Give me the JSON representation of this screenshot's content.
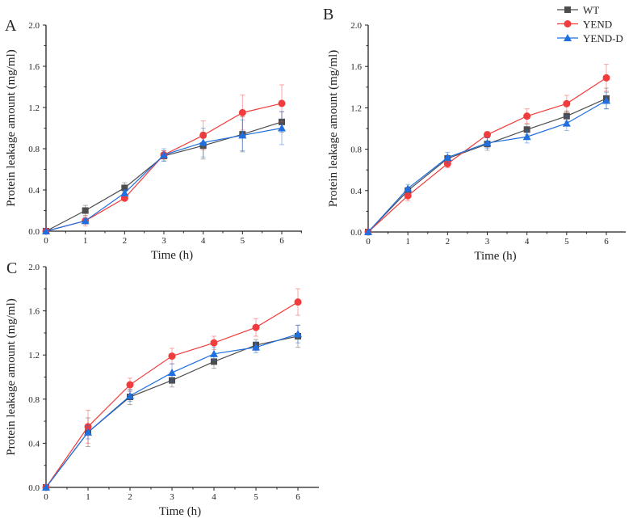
{
  "chart_data": [
    {
      "type": "line",
      "panel_label": "A",
      "xlabel": "Time (h)",
      "ylabel": "Protein leakage amount (mg/ml)",
      "xlim": [
        0,
        6
      ],
      "ylim": [
        0,
        2.0
      ],
      "xticks": [
        "0",
        "1",
        "2",
        "3",
        "4",
        "5",
        "6"
      ],
      "yticks": [
        "0.0",
        "0.4",
        "0.8",
        "1.2",
        "1.6",
        "2.0"
      ],
      "x": [
        0,
        1,
        2,
        3,
        4,
        5,
        6
      ],
      "series": [
        {
          "name": "WT",
          "color": "#4d4d4d",
          "marker": "square",
          "values": [
            0,
            0.2,
            0.42,
            0.73,
            0.83,
            0.94,
            1.06
          ],
          "errors": [
            0,
            0.05,
            0.05,
            0.05,
            0.13,
            0.17,
            0.1
          ]
        },
        {
          "name": "YEND",
          "color": "#f03c3c",
          "marker": "circle",
          "values": [
            0,
            0.1,
            0.32,
            0.74,
            0.93,
            1.15,
            1.24
          ],
          "errors": [
            0,
            0.05,
            0.02,
            0.04,
            0.14,
            0.17,
            0.18
          ]
        },
        {
          "name": "YEND-D",
          "color": "#1f6fe0",
          "marker": "triangle",
          "values": [
            0,
            0.1,
            0.37,
            0.74,
            0.86,
            0.93,
            1.0
          ],
          "errors": [
            0,
            0.03,
            0.03,
            0.06,
            0.14,
            0.15,
            0.16
          ]
        }
      ]
    },
    {
      "type": "line",
      "panel_label": "B",
      "xlabel": "Time (h)",
      "ylabel": "Protein leakage amount (mg/ml)",
      "xlim": [
        0,
        6
      ],
      "ylim": [
        0,
        2.0
      ],
      "xticks": [
        "0",
        "1",
        "2",
        "3",
        "4",
        "5",
        "6"
      ],
      "yticks": [
        "0.0",
        "0.4",
        "0.8",
        "1.2",
        "1.6",
        "2.0"
      ],
      "legend": "top-right",
      "x": [
        0,
        1,
        2,
        3,
        4,
        5,
        6
      ],
      "series": [
        {
          "name": "WT",
          "color": "#4d4d4d",
          "marker": "square",
          "values": [
            0,
            0.4,
            0.71,
            0.85,
            0.99,
            1.12,
            1.29
          ],
          "errors": [
            0,
            0.03,
            0.03,
            0.06,
            0.05,
            0.05,
            0.1
          ]
        },
        {
          "name": "YEND",
          "color": "#f03c3c",
          "marker": "circle",
          "values": [
            0,
            0.35,
            0.66,
            0.94,
            1.12,
            1.24,
            1.49
          ],
          "errors": [
            0,
            0.05,
            0.04,
            0.03,
            0.07,
            0.08,
            0.13
          ]
        },
        {
          "name": "YEND-D",
          "color": "#1f6fe0",
          "marker": "triangle",
          "values": [
            0,
            0.42,
            0.72,
            0.86,
            0.92,
            1.05,
            1.27
          ],
          "errors": [
            0,
            0.04,
            0.05,
            0.05,
            0.06,
            0.07,
            0.08
          ]
        }
      ]
    },
    {
      "type": "line",
      "panel_label": "C",
      "xlabel": "Time (h)",
      "ylabel": "Protein leakage amount (mg/ml)",
      "xlim": [
        0,
        6
      ],
      "ylim": [
        0,
        2.0
      ],
      "xticks": [
        "0",
        "1",
        "2",
        "3",
        "4",
        "5",
        "6"
      ],
      "yticks": [
        "0.0",
        "0.4",
        "0.8",
        "1.2",
        "1.6",
        "2.0"
      ],
      "x": [
        0,
        1,
        2,
        3,
        4,
        5,
        6
      ],
      "series": [
        {
          "name": "WT",
          "color": "#4d4d4d",
          "marker": "square",
          "values": [
            0,
            0.5,
            0.82,
            0.97,
            1.14,
            1.29,
            1.37
          ],
          "errors": [
            0,
            0.13,
            0.07,
            0.06,
            0.06,
            0.05,
            0.1
          ]
        },
        {
          "name": "YEND",
          "color": "#f03c3c",
          "marker": "circle",
          "values": [
            0,
            0.55,
            0.93,
            1.19,
            1.31,
            1.45,
            1.68
          ],
          "errors": [
            0,
            0.15,
            0.06,
            0.07,
            0.06,
            0.08,
            0.12
          ]
        },
        {
          "name": "YEND-D",
          "color": "#1f6fe0",
          "marker": "triangle",
          "values": [
            0,
            0.5,
            0.83,
            1.04,
            1.21,
            1.27,
            1.39
          ],
          "errors": [
            0,
            0.06,
            0.05,
            0.08,
            0.06,
            0.05,
            0.08
          ]
        }
      ]
    }
  ]
}
